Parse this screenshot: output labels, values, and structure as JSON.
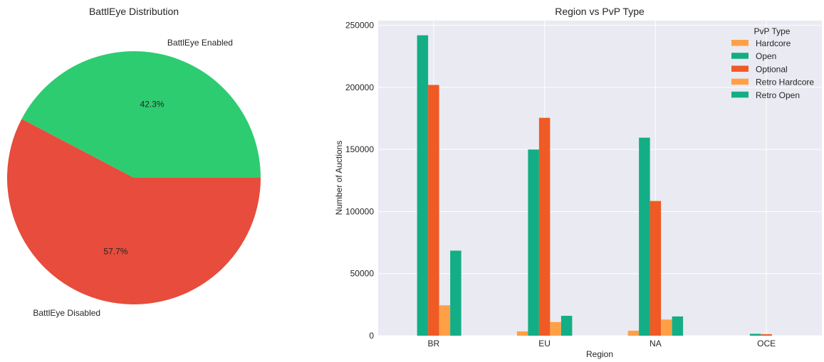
{
  "chart_data": [
    {
      "type": "pie",
      "title": "BattlEye Distribution",
      "slices": [
        {
          "label": "BattlEye Enabled",
          "percent": 42.3,
          "pct_label": "42.3%",
          "color": "#2ecc71"
        },
        {
          "label": "BattlEye Disabled",
          "percent": 57.7,
          "pct_label": "57.7%",
          "color": "#e74c3c"
        }
      ]
    },
    {
      "type": "bar",
      "title": "Region vs PvP Type",
      "xlabel": "Region",
      "ylabel": "Number of Auctions",
      "categories": [
        "BR",
        "EU",
        "NA",
        "OCE"
      ],
      "ylim": [
        0,
        250000
      ],
      "yticks": [
        0,
        50000,
        100000,
        150000,
        200000,
        250000
      ],
      "ytick_labels": [
        "0",
        "50000",
        "100000",
        "150000",
        "200000",
        "250000"
      ],
      "grid": true,
      "legend_title": "PvP Type",
      "legend_position": "top-right",
      "series": [
        {
          "name": "Hardcore",
          "color": "#ffa047",
          "values": [
            0,
            3500,
            4000,
            0
          ]
        },
        {
          "name": "Open",
          "color": "#13ae85",
          "values": [
            242000,
            150000,
            159500,
            1500
          ]
        },
        {
          "name": "Optional",
          "color": "#f05a24",
          "values": [
            202000,
            175500,
            108500,
            1200
          ]
        },
        {
          "name": "Retro Hardcore",
          "color": "#ffa047",
          "values": [
            24500,
            11000,
            13000,
            0
          ]
        },
        {
          "name": "Retro Open",
          "color": "#13ae85",
          "values": [
            68500,
            16000,
            15500,
            0
          ]
        }
      ]
    }
  ]
}
